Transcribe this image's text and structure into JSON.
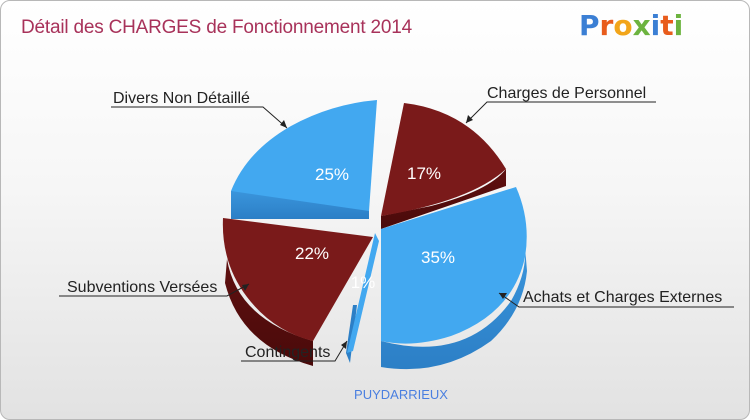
{
  "header": {
    "title": "Détail des CHARGES de Fonctionnement 2014",
    "logo_text": "Proxiti",
    "title_color": "#a8325a"
  },
  "chart_data": {
    "type": "pie",
    "title": "Détail des CHARGES de Fonctionnement 2014",
    "subtitle": "PUYDARRIEUX",
    "series": [
      {
        "name": "Charges de Personnel",
        "value": 17,
        "label": "17%",
        "color": "#7a1a1a"
      },
      {
        "name": "Achats et Charges Externes",
        "value": 35,
        "label": "35%",
        "color": "#42a8f0"
      },
      {
        "name": "Contingents",
        "value": 1,
        "label": "1%",
        "color": "#42a8f0"
      },
      {
        "name": "Subventions Versées",
        "value": 22,
        "label": "22%",
        "color": "#7a1a1a"
      },
      {
        "name": "Divers Non Détaillé",
        "value": 25,
        "label": "25%",
        "color": "#42a8f0"
      }
    ]
  }
}
